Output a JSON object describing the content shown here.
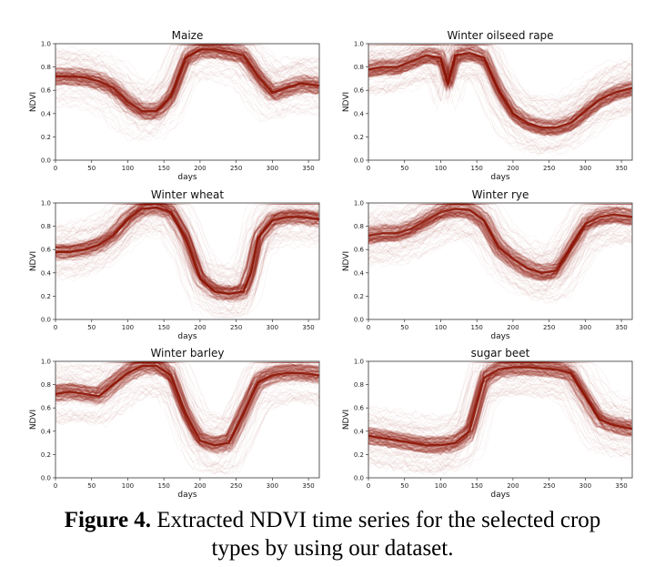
{
  "caption": {
    "label": "Figure 4.",
    "text_line1": "Extracted NDVI time series for the selected crop",
    "text_line2": "types by using our dataset."
  },
  "colors": {
    "series": "#8b1000",
    "axis": "#333333"
  },
  "chart_data": [
    {
      "type": "line",
      "title": "Maize",
      "xlabel": "days",
      "ylabel": "NDVI",
      "xlim": [
        0,
        365
      ],
      "ylim": [
        0,
        1
      ],
      "xticks": [
        0,
        50,
        100,
        150,
        200,
        250,
        300,
        350
      ],
      "yticks": [
        0.0,
        0.2,
        0.4,
        0.6,
        0.8,
        1.0
      ],
      "series": [
        {
          "x": [
            0,
            20,
            40,
            60,
            80,
            100,
            120,
            140,
            160,
            180,
            200,
            220,
            240,
            260,
            280,
            300,
            320,
            340,
            365
          ],
          "y": [
            0.72,
            0.72,
            0.71,
            0.68,
            0.62,
            0.5,
            0.42,
            0.42,
            0.55,
            0.88,
            0.95,
            0.95,
            0.93,
            0.9,
            0.72,
            0.58,
            0.62,
            0.66,
            0.64
          ]
        }
      ]
    },
    {
      "type": "line",
      "title": "Winter oilseed rape",
      "xlabel": "days",
      "ylabel": "NDVI",
      "xlim": [
        0,
        365
      ],
      "ylim": [
        0,
        1
      ],
      "xticks": [
        0,
        50,
        100,
        150,
        200,
        250,
        300,
        350
      ],
      "yticks": [
        0.0,
        0.2,
        0.4,
        0.6,
        0.8,
        1.0
      ],
      "series": [
        {
          "x": [
            0,
            20,
            40,
            60,
            80,
            100,
            110,
            120,
            140,
            160,
            180,
            200,
            220,
            240,
            260,
            280,
            300,
            320,
            340,
            365
          ],
          "y": [
            0.78,
            0.8,
            0.8,
            0.85,
            0.9,
            0.88,
            0.65,
            0.9,
            0.92,
            0.88,
            0.6,
            0.4,
            0.32,
            0.28,
            0.28,
            0.32,
            0.42,
            0.52,
            0.58,
            0.62
          ]
        }
      ]
    },
    {
      "type": "line",
      "title": "Winter wheat",
      "xlabel": "days",
      "ylabel": "NDVI",
      "xlim": [
        0,
        365
      ],
      "ylim": [
        0,
        1
      ],
      "xticks": [
        0,
        50,
        100,
        150,
        200,
        250,
        300,
        350
      ],
      "yticks": [
        0.0,
        0.2,
        0.4,
        0.6,
        0.8,
        1.0
      ],
      "series": [
        {
          "x": [
            0,
            20,
            40,
            60,
            80,
            100,
            120,
            140,
            160,
            180,
            200,
            220,
            240,
            260,
            270,
            280,
            300,
            320,
            340,
            365
          ],
          "y": [
            0.58,
            0.58,
            0.6,
            0.64,
            0.72,
            0.86,
            0.95,
            0.96,
            0.92,
            0.7,
            0.35,
            0.24,
            0.22,
            0.24,
            0.4,
            0.7,
            0.85,
            0.88,
            0.88,
            0.86
          ]
        }
      ]
    },
    {
      "type": "line",
      "title": "Winter rye",
      "xlabel": "days",
      "ylabel": "NDVI",
      "xlim": [
        0,
        365
      ],
      "ylim": [
        0,
        1
      ],
      "xticks": [
        0,
        50,
        100,
        150,
        200,
        250,
        300,
        350
      ],
      "yticks": [
        0.0,
        0.2,
        0.4,
        0.6,
        0.8,
        1.0
      ],
      "series": [
        {
          "x": [
            0,
            20,
            40,
            60,
            80,
            100,
            120,
            140,
            160,
            180,
            200,
            220,
            240,
            260,
            280,
            300,
            320,
            340,
            365
          ],
          "y": [
            0.72,
            0.74,
            0.74,
            0.78,
            0.85,
            0.92,
            0.95,
            0.94,
            0.85,
            0.62,
            0.52,
            0.44,
            0.4,
            0.42,
            0.62,
            0.82,
            0.88,
            0.9,
            0.88
          ]
        }
      ]
    },
    {
      "type": "line",
      "title": "Winter barley",
      "xlabel": "days",
      "ylabel": "NDVI",
      "xlim": [
        0,
        365
      ],
      "ylim": [
        0,
        1
      ],
      "xticks": [
        0,
        50,
        100,
        150,
        200,
        250,
        300,
        350
      ],
      "yticks": [
        0.0,
        0.2,
        0.4,
        0.6,
        0.8,
        1.0
      ],
      "series": [
        {
          "x": [
            0,
            20,
            40,
            60,
            80,
            100,
            120,
            140,
            160,
            180,
            200,
            220,
            240,
            260,
            280,
            300,
            320,
            340,
            365
          ],
          "y": [
            0.72,
            0.74,
            0.72,
            0.7,
            0.8,
            0.9,
            0.96,
            0.96,
            0.88,
            0.55,
            0.32,
            0.28,
            0.3,
            0.55,
            0.82,
            0.88,
            0.9,
            0.9,
            0.88
          ]
        }
      ]
    },
    {
      "type": "line",
      "title": "sugar beet",
      "xlabel": "days",
      "ylabel": "NDVI",
      "xlim": [
        0,
        365
      ],
      "ylim": [
        0,
        1
      ],
      "xticks": [
        0,
        50,
        100,
        150,
        200,
        250,
        300,
        350
      ],
      "yticks": [
        0.0,
        0.2,
        0.4,
        0.6,
        0.8,
        1.0
      ],
      "series": [
        {
          "x": [
            0,
            20,
            40,
            60,
            80,
            100,
            120,
            140,
            160,
            180,
            200,
            220,
            240,
            260,
            280,
            300,
            320,
            340,
            365
          ],
          "y": [
            0.36,
            0.34,
            0.32,
            0.3,
            0.28,
            0.28,
            0.3,
            0.4,
            0.86,
            0.93,
            0.95,
            0.95,
            0.94,
            0.93,
            0.9,
            0.7,
            0.5,
            0.45,
            0.42
          ]
        }
      ]
    }
  ]
}
